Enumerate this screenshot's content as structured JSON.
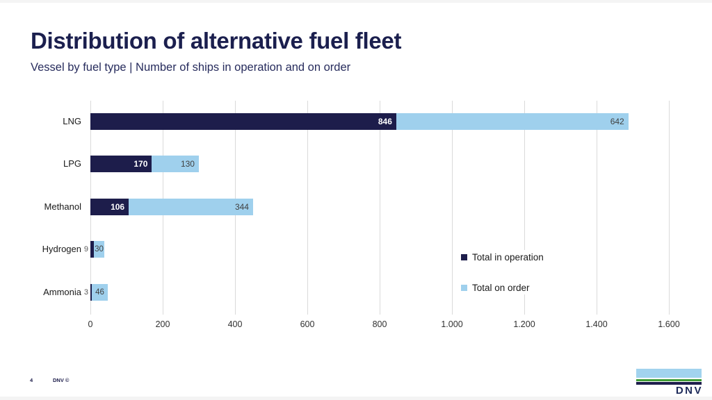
{
  "slide": {
    "title": "Distribution of alternative fuel fleet",
    "subtitle": "Vessel by fuel type | Number of ships in operation and on order",
    "page_number": "4",
    "copyright_label": "DNV ©",
    "logo_text": "DNV"
  },
  "colors": {
    "title_navy": "#1b1f4e",
    "bar_dark_navy": "#1d1d4b",
    "bar_light_blue": "#9fd0ed",
    "gridline_gray": "#dadada",
    "value_in_dark": "#ffffff",
    "value_in_light": "#404040",
    "value_outside": "#595959",
    "logo_light_blue": "#a2d3ee",
    "logo_green": "#3f9c35",
    "logo_navy": "#1d1d4b"
  },
  "chart_data": {
    "type": "bar",
    "orientation": "horizontal",
    "stacked": true,
    "title": "Distribution of alternative fuel fleet",
    "subtitle": "Vessel by fuel type | Number of ships in operation and on order",
    "categories": [
      "LNG",
      "LPG",
      "Methanol",
      "Hydrogen",
      "Ammonia"
    ],
    "series": [
      {
        "name": "Total in operation",
        "color": "#1d1d4b",
        "values": [
          846,
          170,
          106,
          9,
          3
        ]
      },
      {
        "name": "Total on order",
        "color": "#9fd0ed",
        "values": [
          642,
          130,
          344,
          30,
          46
        ]
      }
    ],
    "totals": [
      1488,
      300,
      450,
      39,
      49
    ],
    "xlim": [
      0,
      1600
    ],
    "x_ticks": [
      {
        "v": 0,
        "label": "0"
      },
      {
        "v": 200,
        "label": "200"
      },
      {
        "v": 400,
        "label": "400"
      },
      {
        "v": 600,
        "label": "600"
      },
      {
        "v": 800,
        "label": "800"
      },
      {
        "v": 1000,
        "label": "1.000"
      },
      {
        "v": 1200,
        "label": "1.200"
      },
      {
        "v": 1400,
        "label": "1.400"
      },
      {
        "v": 1600,
        "label": "1.600"
      }
    ],
    "grid": true,
    "legend_position": "inside-right"
  }
}
